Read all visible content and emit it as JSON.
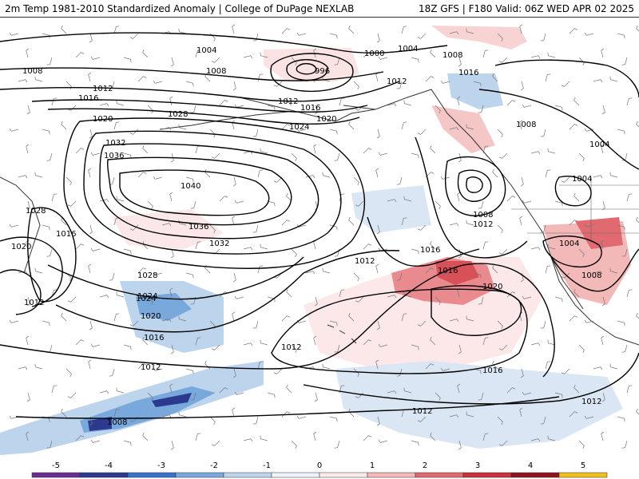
{
  "header": {
    "left_title": "2m Temp 1981-2010 Standardized Anomaly | College of DuPage NEXLAB",
    "right_title": "18Z GFS | F180 Valid: 06Z WED APR 02 2025"
  },
  "colorbar": {
    "ticks": [
      {
        "value": -5,
        "label": "-5"
      },
      {
        "value": -4,
        "label": "-4"
      },
      {
        "value": -3,
        "label": "-3"
      },
      {
        "value": -2,
        "label": "-2"
      },
      {
        "value": -1,
        "label": "-1"
      },
      {
        "value": 0,
        "label": "0"
      },
      {
        "value": 1,
        "label": "1"
      },
      {
        "value": 2,
        "label": "2"
      },
      {
        "value": 3,
        "label": "3"
      },
      {
        "value": 4,
        "label": "4"
      },
      {
        "value": 5,
        "label": "5"
      }
    ],
    "colors": [
      "#6a2c8e",
      "#2b3a8e",
      "#3a72c9",
      "#78a8dc",
      "#bcd4ec",
      "#eef3fa",
      "#fbecec",
      "#f3b8b8",
      "#e06a70",
      "#c8323a",
      "#8e1420",
      "#f0c020"
    ]
  },
  "isobars": [
    {
      "label": "1004"
    },
    {
      "label": "1008"
    },
    {
      "label": "1000"
    },
    {
      "label": "996"
    },
    {
      "label": "1004"
    },
    {
      "label": "1008"
    },
    {
      "label": "1012"
    },
    {
      "label": "1016"
    },
    {
      "label": "1020"
    },
    {
      "label": "1024"
    },
    {
      "label": "1028"
    },
    {
      "label": "1032"
    },
    {
      "label": "1036"
    },
    {
      "label": "1040"
    },
    {
      "label": "1028"
    },
    {
      "label": "1016"
    },
    {
      "label": "1020"
    },
    {
      "label": "1012"
    },
    {
      "label": "1036"
    },
    {
      "label": "1032"
    },
    {
      "label": "1028"
    },
    {
      "label": "1024"
    },
    {
      "label": "1020"
    },
    {
      "label": "1016"
    },
    {
      "label": "1012"
    },
    {
      "label": "1008"
    },
    {
      "label": "1012"
    },
    {
      "label": "1016"
    },
    {
      "label": "1012"
    },
    {
      "label": "1016"
    },
    {
      "label": "1020"
    },
    {
      "label": "1024"
    },
    {
      "label": "1012"
    },
    {
      "label": "1016"
    },
    {
      "label": "1020"
    },
    {
      "label": "1004"
    },
    {
      "label": "1004"
    },
    {
      "label": "1008"
    },
    {
      "label": "1008"
    },
    {
      "label": "1004"
    },
    {
      "label": "1008"
    },
    {
      "label": "1016"
    },
    {
      "label": "1012"
    },
    {
      "label": "1012"
    },
    {
      "label": "1008"
    },
    {
      "label": "1012"
    },
    {
      "label": "1012"
    },
    {
      "label": "1016"
    }
  ]
}
